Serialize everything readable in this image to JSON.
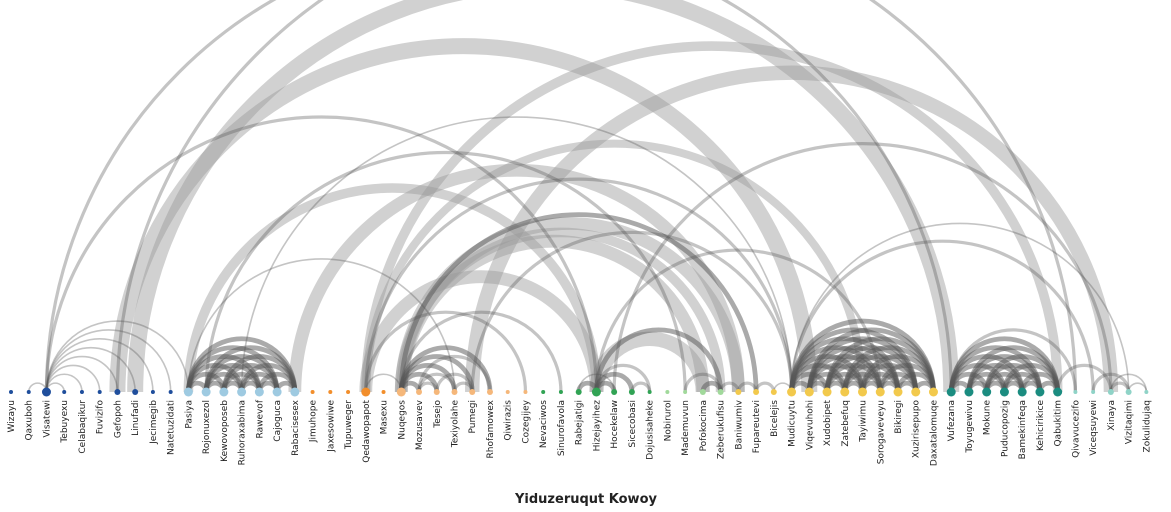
{
  "title": "Yiduzeruqut Kowoy",
  "group_colors": [
    "#1f4e9c",
    "#9ecae1",
    "#f28e2b",
    "#f5b77a",
    "#31a354",
    "#a1d99b",
    "#f2c94c",
    "#1b8c80",
    "#8fd3c7"
  ],
  "nodes": [
    {
      "label": "Wizayu",
      "group": 0,
      "degree": 0
    },
    {
      "label": "Qaxuboh",
      "group": 0,
      "degree": 1
    },
    {
      "label": "Visatewi",
      "group": 0,
      "degree": 9
    },
    {
      "label": "Tebuyexu",
      "group": 0,
      "degree": 1
    },
    {
      "label": "Celabaqikur",
      "group": 0,
      "degree": 1
    },
    {
      "label": "Fuvizifo",
      "group": 0,
      "degree": 1
    },
    {
      "label": "Gefopoh",
      "group": 0,
      "degree": 2
    },
    {
      "label": "Linufadi",
      "group": 0,
      "degree": 2
    },
    {
      "label": "Jecimegib",
      "group": 0,
      "degree": 1
    },
    {
      "label": "Natetuzidati",
      "group": 0,
      "degree": 1
    },
    {
      "label": "Pasiya",
      "group": 1,
      "degree": 6
    },
    {
      "label": "Rojonuxezol",
      "group": 1,
      "degree": 8
    },
    {
      "label": "Kewovoposeb",
      "group": 1,
      "degree": 7
    },
    {
      "label": "Ruhoraxabima",
      "group": 1,
      "degree": 7
    },
    {
      "label": "Rawevof",
      "group": 1,
      "degree": 7
    },
    {
      "label": "Cajoguca",
      "group": 1,
      "degree": 7
    },
    {
      "label": "Rabacisesex",
      "group": 1,
      "degree": 7
    },
    {
      "label": "Jimuhope",
      "group": 2,
      "degree": 0
    },
    {
      "label": "Jaxesowiwe",
      "group": 2,
      "degree": 1
    },
    {
      "label": "Tupuweger",
      "group": 2,
      "degree": 1
    },
    {
      "label": "Qedawopapot",
      "group": 2,
      "degree": 7
    },
    {
      "label": "Masexu",
      "group": 2,
      "degree": 1
    },
    {
      "label": "Nuqegos",
      "group": 3,
      "degree": 8
    },
    {
      "label": "Mozusavev",
      "group": 3,
      "degree": 4
    },
    {
      "label": "Tesejo",
      "group": 3,
      "degree": 2
    },
    {
      "label": "Texiyolahe",
      "group": 3,
      "degree": 2
    },
    {
      "label": "Pumegi",
      "group": 3,
      "degree": 3
    },
    {
      "label": "Rhofamowex",
      "group": 3,
      "degree": 2
    },
    {
      "label": "Qiwirazis",
      "group": 3,
      "degree": 1
    },
    {
      "label": "Cozegijey",
      "group": 3,
      "degree": 1
    },
    {
      "label": "Nevaciwos",
      "group": 4,
      "degree": 1
    },
    {
      "label": "Sinurofavola",
      "group": 4,
      "degree": 1
    },
    {
      "label": "Rabejatigi",
      "group": 4,
      "degree": 2
    },
    {
      "label": "Hizejayihez",
      "group": 4,
      "degree": 7
    },
    {
      "label": "Hocekelaw",
      "group": 4,
      "degree": 2
    },
    {
      "label": "Sicecobasi",
      "group": 4,
      "degree": 2
    },
    {
      "label": "Dojusisaheke",
      "group": 4,
      "degree": 1
    },
    {
      "label": "Nobirurol",
      "group": 5,
      "degree": 0
    },
    {
      "label": "Mademuvun",
      "group": 5,
      "degree": 1
    },
    {
      "label": "Pofokocima",
      "group": 5,
      "degree": 4
    },
    {
      "label": "Zeberukufisu",
      "group": 5,
      "degree": 3
    },
    {
      "label": "Baniwumiv",
      "group": 6,
      "degree": 3
    },
    {
      "label": "Fupareutevi",
      "group": 6,
      "degree": 2
    },
    {
      "label": "Bicelejis",
      "group": 6,
      "degree": 2
    },
    {
      "label": "Mudicuytu",
      "group": 6,
      "degree": 7
    },
    {
      "label": "Viqevuhohi",
      "group": 6,
      "degree": 6
    },
    {
      "label": "Xudobipet",
      "group": 6,
      "degree": 6
    },
    {
      "label": "Zatebefuq",
      "group": 6,
      "degree": 6
    },
    {
      "label": "Tayiwimu",
      "group": 6,
      "degree": 6
    },
    {
      "label": "Sorogaveveyu",
      "group": 6,
      "degree": 6
    },
    {
      "label": "Bikiregi",
      "group": 6,
      "degree": 6
    },
    {
      "label": "Xuzirisepupo",
      "group": 6,
      "degree": 6
    },
    {
      "label": "Daxatalomuqe",
      "group": 6,
      "degree": 6
    },
    {
      "label": "Vufezana",
      "group": 7,
      "degree": 6
    },
    {
      "label": "Toyugewivu",
      "group": 7,
      "degree": 6
    },
    {
      "label": "Mokune",
      "group": 7,
      "degree": 5
    },
    {
      "label": "Puducopozig",
      "group": 7,
      "degree": 5
    },
    {
      "label": "Bamekinfeqa",
      "group": 7,
      "degree": 5
    },
    {
      "label": "Kehicirikice",
      "group": 7,
      "degree": 5
    },
    {
      "label": "Qabukitim",
      "group": 7,
      "degree": 5
    },
    {
      "label": "Qivavucezifo",
      "group": 8,
      "degree": 0
    },
    {
      "label": "Viceqsuyewi",
      "group": 8,
      "degree": 1
    },
    {
      "label": "Xinaya",
      "group": 8,
      "degree": 3
    },
    {
      "label": "Vizitaqimi",
      "group": 8,
      "degree": 2
    },
    {
      "label": "Zokulidujaq",
      "group": 8,
      "degree": 1
    }
  ],
  "links": [
    [
      2,
      1,
      1
    ],
    [
      2,
      3,
      1
    ],
    [
      2,
      4,
      1
    ],
    [
      2,
      5,
      1
    ],
    [
      2,
      6,
      1
    ],
    [
      2,
      7,
      1
    ],
    [
      2,
      8,
      1
    ],
    [
      2,
      9,
      1
    ],
    [
      2,
      10,
      1
    ],
    [
      2,
      33,
      2
    ],
    [
      2,
      53,
      2
    ],
    [
      6,
      45,
      10
    ],
    [
      7,
      53,
      10
    ],
    [
      6,
      60,
      2
    ],
    [
      10,
      11,
      3
    ],
    [
      10,
      12,
      3
    ],
    [
      10,
      13,
      3
    ],
    [
      10,
      14,
      3
    ],
    [
      10,
      15,
      3
    ],
    [
      10,
      16,
      3
    ],
    [
      11,
      12,
      3
    ],
    [
      11,
      13,
      3
    ],
    [
      11,
      14,
      3
    ],
    [
      11,
      15,
      3
    ],
    [
      11,
      16,
      3
    ],
    [
      12,
      13,
      3
    ],
    [
      12,
      14,
      3
    ],
    [
      12,
      15,
      3
    ],
    [
      12,
      16,
      3
    ],
    [
      13,
      14,
      3
    ],
    [
      13,
      15,
      3
    ],
    [
      13,
      16,
      3
    ],
    [
      14,
      15,
      3
    ],
    [
      14,
      16,
      3
    ],
    [
      15,
      16,
      3
    ],
    [
      10,
      33,
      6
    ],
    [
      10,
      25,
      1
    ],
    [
      11,
      38,
      2
    ],
    [
      16,
      41,
      8
    ],
    [
      13,
      44,
      1
    ],
    [
      20,
      33,
      8
    ],
    [
      20,
      44,
      2
    ],
    [
      20,
      48,
      5
    ],
    [
      20,
      59,
      6
    ],
    [
      20,
      29,
      2
    ],
    [
      20,
      22,
      1
    ],
    [
      22,
      23,
      3
    ],
    [
      22,
      24,
      3
    ],
    [
      22,
      25,
      3
    ],
    [
      22,
      26,
      3
    ],
    [
      22,
      27,
      3
    ],
    [
      22,
      31,
      2
    ],
    [
      22,
      39,
      8
    ],
    [
      22,
      40,
      6
    ],
    [
      22,
      41,
      8
    ],
    [
      22,
      42,
      3
    ],
    [
      23,
      24,
      2
    ],
    [
      23,
      25,
      2
    ],
    [
      24,
      26,
      2
    ],
    [
      25,
      26,
      2
    ],
    [
      23,
      27,
      2
    ],
    [
      26,
      62,
      9
    ],
    [
      26,
      44,
      2
    ],
    [
      32,
      33,
      3
    ],
    [
      33,
      34,
      3
    ],
    [
      33,
      35,
      3
    ],
    [
      32,
      34,
      1
    ],
    [
      34,
      62,
      2
    ],
    [
      33,
      36,
      2
    ],
    [
      35,
      36,
      2
    ],
    [
      33,
      39,
      9
    ],
    [
      33,
      40,
      3
    ],
    [
      33,
      49,
      2
    ],
    [
      39,
      40,
      3
    ],
    [
      38,
      40,
      2
    ],
    [
      40,
      41,
      2
    ],
    [
      41,
      42,
      2
    ],
    [
      42,
      43,
      2
    ],
    [
      43,
      44,
      1
    ],
    [
      44,
      45,
      3
    ],
    [
      44,
      46,
      3
    ],
    [
      44,
      47,
      3
    ],
    [
      44,
      48,
      3
    ],
    [
      44,
      49,
      3
    ],
    [
      44,
      50,
      3
    ],
    [
      44,
      51,
      3
    ],
    [
      44,
      52,
      3
    ],
    [
      45,
      46,
      3
    ],
    [
      45,
      47,
      3
    ],
    [
      45,
      48,
      3
    ],
    [
      45,
      49,
      3
    ],
    [
      45,
      50,
      3
    ],
    [
      45,
      51,
      3
    ],
    [
      45,
      52,
      3
    ],
    [
      46,
      47,
      3
    ],
    [
      46,
      48,
      3
    ],
    [
      46,
      49,
      3
    ],
    [
      46,
      50,
      3
    ],
    [
      46,
      51,
      3
    ],
    [
      46,
      52,
      3
    ],
    [
      47,
      48,
      3
    ],
    [
      47,
      49,
      3
    ],
    [
      47,
      50,
      3
    ],
    [
      47,
      51,
      3
    ],
    [
      47,
      52,
      3
    ],
    [
      48,
      49,
      3
    ],
    [
      48,
      50,
      3
    ],
    [
      48,
      51,
      3
    ],
    [
      48,
      52,
      3
    ],
    [
      49,
      50,
      3
    ],
    [
      49,
      51,
      3
    ],
    [
      49,
      52,
      3
    ],
    [
      50,
      51,
      3
    ],
    [
      50,
      52,
      3
    ],
    [
      51,
      52,
      3
    ],
    [
      44,
      61,
      2
    ],
    [
      44,
      63,
      1
    ],
    [
      53,
      54,
      3
    ],
    [
      53,
      55,
      3
    ],
    [
      53,
      56,
      3
    ],
    [
      53,
      57,
      3
    ],
    [
      53,
      58,
      3
    ],
    [
      53,
      59,
      3
    ],
    [
      54,
      55,
      3
    ],
    [
      54,
      56,
      3
    ],
    [
      54,
      57,
      3
    ],
    [
      54,
      58,
      3
    ],
    [
      54,
      59,
      3
    ],
    [
      55,
      56,
      3
    ],
    [
      55,
      57,
      3
    ],
    [
      55,
      58,
      3
    ],
    [
      55,
      59,
      3
    ],
    [
      56,
      57,
      3
    ],
    [
      56,
      58,
      3
    ],
    [
      56,
      59,
      3
    ],
    [
      57,
      58,
      3
    ],
    [
      57,
      59,
      3
    ],
    [
      58,
      59,
      3
    ],
    [
      53,
      60,
      2
    ],
    [
      59,
      62,
      2
    ],
    [
      61,
      63,
      2
    ],
    [
      62,
      63,
      2
    ],
    [
      62,
      64,
      1
    ],
    [
      63,
      64,
      1
    ]
  ]
}
